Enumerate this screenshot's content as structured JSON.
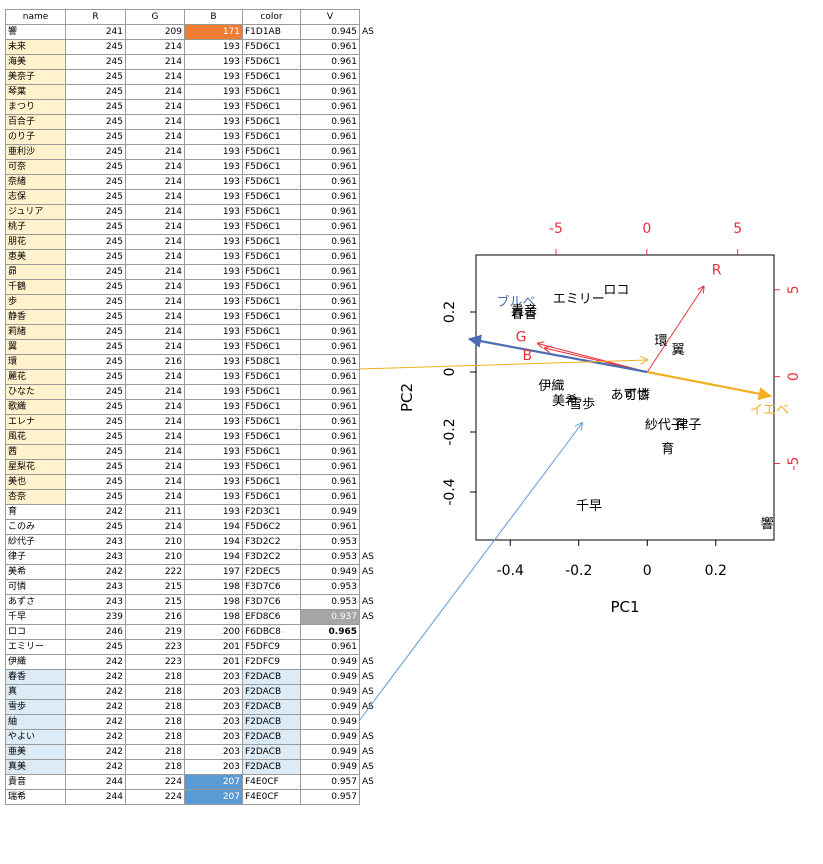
{
  "table": {
    "headers": [
      "name",
      "R",
      "G",
      "B",
      "color",
      "V",
      ""
    ],
    "rows": [
      {
        "name": "響",
        "r": 241,
        "g": 209,
        "b": 171,
        "color": "F1D1AB",
        "v": "0.945",
        "flag": "AS"
      },
      {
        "name": "未来",
        "r": 245,
        "g": 214,
        "b": 193,
        "color": "F5D6C1",
        "v": "0.961",
        "flag": ""
      },
      {
        "name": "海美",
        "r": 245,
        "g": 214,
        "b": 193,
        "color": "F5D6C1",
        "v": "0.961",
        "flag": ""
      },
      {
        "name": "美奈子",
        "r": 245,
        "g": 214,
        "b": 193,
        "color": "F5D6C1",
        "v": "0.961",
        "flag": ""
      },
      {
        "name": "琴葉",
        "r": 245,
        "g": 214,
        "b": 193,
        "color": "F5D6C1",
        "v": "0.961",
        "flag": ""
      },
      {
        "name": "まつり",
        "r": 245,
        "g": 214,
        "b": 193,
        "color": "F5D6C1",
        "v": "0.961",
        "flag": ""
      },
      {
        "name": "百合子",
        "r": 245,
        "g": 214,
        "b": 193,
        "color": "F5D6C1",
        "v": "0.961",
        "flag": ""
      },
      {
        "name": "のり子",
        "r": 245,
        "g": 214,
        "b": 193,
        "color": "F5D6C1",
        "v": "0.961",
        "flag": ""
      },
      {
        "name": "亜利沙",
        "r": 245,
        "g": 214,
        "b": 193,
        "color": "F5D6C1",
        "v": "0.961",
        "flag": ""
      },
      {
        "name": "可奈",
        "r": 245,
        "g": 214,
        "b": 193,
        "color": "F5D6C1",
        "v": "0.961",
        "flag": ""
      },
      {
        "name": "奈緒",
        "r": 245,
        "g": 214,
        "b": 193,
        "color": "F5D6C1",
        "v": "0.961",
        "flag": ""
      },
      {
        "name": "志保",
        "r": 245,
        "g": 214,
        "b": 193,
        "color": "F5D6C1",
        "v": "0.961",
        "flag": ""
      },
      {
        "name": "ジュリア",
        "r": 245,
        "g": 214,
        "b": 193,
        "color": "F5D6C1",
        "v": "0.961",
        "flag": ""
      },
      {
        "name": "桃子",
        "r": 245,
        "g": 214,
        "b": 193,
        "color": "F5D6C1",
        "v": "0.961",
        "flag": ""
      },
      {
        "name": "朋花",
        "r": 245,
        "g": 214,
        "b": 193,
        "color": "F5D6C1",
        "v": "0.961",
        "flag": ""
      },
      {
        "name": "恵美",
        "r": 245,
        "g": 214,
        "b": 193,
        "color": "F5D6C1",
        "v": "0.961",
        "flag": ""
      },
      {
        "name": "昴",
        "r": 245,
        "g": 214,
        "b": 193,
        "color": "F5D6C1",
        "v": "0.961",
        "flag": ""
      },
      {
        "name": "千鶴",
        "r": 245,
        "g": 214,
        "b": 193,
        "color": "F5D6C1",
        "v": "0.961",
        "flag": ""
      },
      {
        "name": "歩",
        "r": 245,
        "g": 214,
        "b": 193,
        "color": "F5D6C1",
        "v": "0.961",
        "flag": ""
      },
      {
        "name": "静香",
        "r": 245,
        "g": 214,
        "b": 193,
        "color": "F5D6C1",
        "v": "0.961",
        "flag": ""
      },
      {
        "name": "莉緒",
        "r": 245,
        "g": 214,
        "b": 193,
        "color": "F5D6C1",
        "v": "0.961",
        "flag": ""
      },
      {
        "name": "翼",
        "r": 245,
        "g": 214,
        "b": 193,
        "color": "F5D6C1",
        "v": "0.961",
        "flag": ""
      },
      {
        "name": "環",
        "r": 245,
        "g": 216,
        "b": 193,
        "color": "F5D8C1",
        "v": "0.961",
        "flag": ""
      },
      {
        "name": "麗花",
        "r": 245,
        "g": 214,
        "b": 193,
        "color": "F5D6C1",
        "v": "0.961",
        "flag": ""
      },
      {
        "name": "ひなた",
        "r": 245,
        "g": 214,
        "b": 193,
        "color": "F5D6C1",
        "v": "0.961",
        "flag": ""
      },
      {
        "name": "歌織",
        "r": 245,
        "g": 214,
        "b": 193,
        "color": "F5D6C1",
        "v": "0.961",
        "flag": ""
      },
      {
        "name": "エレナ",
        "r": 245,
        "g": 214,
        "b": 193,
        "color": "F5D6C1",
        "v": "0.961",
        "flag": ""
      },
      {
        "name": "風花",
        "r": 245,
        "g": 214,
        "b": 193,
        "color": "F5D6C1",
        "v": "0.961",
        "flag": ""
      },
      {
        "name": "茜",
        "r": 245,
        "g": 214,
        "b": 193,
        "color": "F5D6C1",
        "v": "0.961",
        "flag": ""
      },
      {
        "name": "星梨花",
        "r": 245,
        "g": 214,
        "b": 193,
        "color": "F5D6C1",
        "v": "0.961",
        "flag": ""
      },
      {
        "name": "美也",
        "r": 245,
        "g": 214,
        "b": 193,
        "color": "F5D6C1",
        "v": "0.961",
        "flag": ""
      },
      {
        "name": "杏奈",
        "r": 245,
        "g": 214,
        "b": 193,
        "color": "F5D6C1",
        "v": "0.961",
        "flag": ""
      },
      {
        "name": "育",
        "r": 242,
        "g": 211,
        "b": 193,
        "color": "F2D3C1",
        "v": "0.949",
        "flag": ""
      },
      {
        "name": "このみ",
        "r": 245,
        "g": 214,
        "b": 194,
        "color": "F5D6C2",
        "v": "0.961",
        "flag": ""
      },
      {
        "name": "紗代子",
        "r": 243,
        "g": 210,
        "b": 194,
        "color": "F3D2C2",
        "v": "0.953",
        "flag": ""
      },
      {
        "name": "律子",
        "r": 243,
        "g": 210,
        "b": 194,
        "color": "F3D2C2",
        "v": "0.953",
        "flag": "AS"
      },
      {
        "name": "美希",
        "r": 242,
        "g": 222,
        "b": 197,
        "color": "F2DEC5",
        "v": "0.949",
        "flag": "AS"
      },
      {
        "name": "可憐",
        "r": 243,
        "g": 215,
        "b": 198,
        "color": "F3D7C6",
        "v": "0.953",
        "flag": ""
      },
      {
        "name": "あずさ",
        "r": 243,
        "g": 215,
        "b": 198,
        "color": "F3D7C6",
        "v": "0.953",
        "flag": "AS"
      },
      {
        "name": "千早",
        "r": 239,
        "g": 216,
        "b": 198,
        "color": "EFD8C6",
        "v": "0.937",
        "flag": "AS"
      },
      {
        "name": "ロコ",
        "r": 246,
        "g": 219,
        "b": 200,
        "color": "F6DBC8",
        "v": "0.965",
        "flag": ""
      },
      {
        "name": "エミリー",
        "r": 245,
        "g": 223,
        "b": 201,
        "color": "F5DFC9",
        "v": "0.961",
        "flag": ""
      },
      {
        "name": "伊織",
        "r": 242,
        "g": 223,
        "b": 201,
        "color": "F2DFC9",
        "v": "0.949",
        "flag": "AS"
      },
      {
        "name": "春香",
        "r": 242,
        "g": 218,
        "b": 203,
        "color": "F2DACB",
        "v": "0.949",
        "flag": "AS"
      },
      {
        "name": "真",
        "r": 242,
        "g": 218,
        "b": 203,
        "color": "F2DACB",
        "v": "0.949",
        "flag": "AS"
      },
      {
        "name": "雪歩",
        "r": 242,
        "g": 218,
        "b": 203,
        "color": "F2DACB",
        "v": "0.949",
        "flag": "AS"
      },
      {
        "name": "紬",
        "r": 242,
        "g": 218,
        "b": 203,
        "color": "F2DACB",
        "v": "0.949",
        "flag": ""
      },
      {
        "name": "やよい",
        "r": 242,
        "g": 218,
        "b": 203,
        "color": "F2DACB",
        "v": "0.949",
        "flag": "AS"
      },
      {
        "name": "亜美",
        "r": 242,
        "g": 218,
        "b": 203,
        "color": "F2DACB",
        "v": "0.949",
        "flag": "AS"
      },
      {
        "name": "真美",
        "r": 242,
        "g": 218,
        "b": 203,
        "color": "F2DACB",
        "v": "0.949",
        "flag": "AS"
      },
      {
        "name": "貴音",
        "r": 244,
        "g": 224,
        "b": 207,
        "color": "F4E0CF",
        "v": "0.957",
        "flag": "AS"
      },
      {
        "name": "瑞希",
        "r": 244,
        "g": 224,
        "b": 207,
        "color": "F4E0CF",
        "v": "0.957",
        "flag": ""
      }
    ]
  },
  "chart_data": {
    "type": "biplot",
    "xlabel": "PC1",
    "ylabel": "PC2",
    "xlim": [
      -0.5,
      0.37
    ],
    "ylim": [
      -0.56,
      0.39
    ],
    "xticks": [
      -0.4,
      -0.2,
      0.0,
      0.2
    ],
    "yticks": [
      -0.4,
      -0.2,
      0.0,
      0.2
    ],
    "top_ticks": [
      -5,
      0,
      5
    ],
    "right_ticks": [
      -5,
      0,
      5
    ],
    "loading_scale": [
      -9.4,
      7.0
    ],
    "points": [
      {
        "label": "響",
        "x": 0.35,
        "y": -0.52
      },
      {
        "label": "千早",
        "x": -0.17,
        "y": -0.46
      },
      {
        "label": "ロコ",
        "x": -0.09,
        "y": 0.26
      },
      {
        "label": "エミリー",
        "x": -0.2,
        "y": 0.23
      },
      {
        "label": "春香",
        "x": -0.36,
        "y": 0.18
      },
      {
        "label": "貴音",
        "x": -0.36,
        "y": 0.19
      },
      {
        "label": "環",
        "x": 0.04,
        "y": 0.09
      },
      {
        "label": "翼",
        "x": 0.09,
        "y": 0.06
      },
      {
        "label": "伊織",
        "x": -0.28,
        "y": -0.06
      },
      {
        "label": "美希",
        "x": -0.24,
        "y": -0.11
      },
      {
        "label": "雪歩",
        "x": -0.19,
        "y": -0.12
      },
      {
        "label": "あずさ",
        "x": -0.05,
        "y": -0.09
      },
      {
        "label": "可憐",
        "x": -0.03,
        "y": -0.09
      },
      {
        "label": "紗代子",
        "x": 0.05,
        "y": -0.19
      },
      {
        "label": "律子",
        "x": 0.12,
        "y": -0.19
      },
      {
        "label": "育",
        "x": 0.06,
        "y": -0.27
      }
    ],
    "loadings": [
      {
        "label": "R",
        "x": 0.165,
        "y": 0.285,
        "color": "#e8303a"
      },
      {
        "label": "G",
        "x": -0.32,
        "y": 0.095,
        "color": "#e8303a"
      },
      {
        "label": "B",
        "x": -0.3,
        "y": 0.08,
        "color": "#e8303a"
      },
      {
        "label": "ブルベ",
        "x": -0.52,
        "y": 0.11,
        "color": "#4a6db4"
      },
      {
        "label": "イエベ",
        "x": 0.36,
        "y": -0.08,
        "color": "#f0b020"
      }
    ],
    "legend_labels": [
      {
        "label": "ブルベ",
        "x": -0.44,
        "y": 0.22,
        "color": "#4a6db4"
      },
      {
        "label": "イエベ",
        "x": 0.3,
        "y": -0.14,
        "color": "#f0b020"
      }
    ],
    "connectors": [
      {
        "from_row": 21,
        "to": [
          0.0,
          0.04
        ],
        "color": "#f0b020"
      },
      {
        "from_row": 43,
        "to": [
          -0.19,
          -0.17
        ],
        "color": "#5b9bd5"
      }
    ],
    "colors": {
      "axis": "#e8303a",
      "frame": "#000000"
    }
  }
}
